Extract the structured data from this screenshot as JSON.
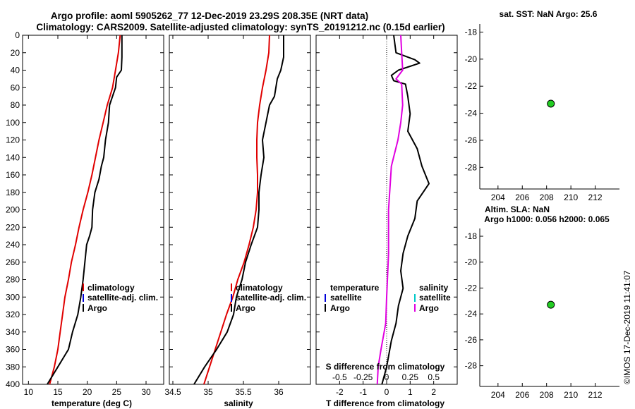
{
  "title_line1": "Argo profile: aoml 5905262_77 12-Dec-2019 23.29S 208.35E (NRT data)",
  "title_line2": "Climatology: CARS2009. Satellite-adjusted climatology: synTS_20191212.nc (0.15d earlier)",
  "stamp": "©IMOS 17-Dec-2019 11:41:07",
  "colors": {
    "climatology": "#e00000",
    "satellite": "#0000d8",
    "argo": "#000000",
    "salinity_diff": "#e000e0",
    "marker": "#22cc22"
  },
  "chart_data": [
    {
      "id": "temperature",
      "type": "line",
      "xlabel": "temperature (deg C)",
      "xlim": [
        9,
        33
      ],
      "xticks": [
        "10",
        "15",
        "20",
        "25",
        "30"
      ],
      "ylim": [
        0,
        400
      ],
      "yticks": [
        "0",
        "20",
        "40",
        "60",
        "80",
        "100",
        "120",
        "140",
        "160",
        "180",
        "200",
        "220",
        "240",
        "260",
        "280",
        "300",
        "320",
        "340",
        "360",
        "380",
        "400"
      ],
      "legend": [
        "climatology",
        "satellite-adj. clim.",
        "Argo"
      ],
      "series": [
        {
          "name": "climatology",
          "color": "red",
          "points": [
            [
              25.6,
              0
            ],
            [
              25.3,
              20
            ],
            [
              24.8,
              40
            ],
            [
              24.3,
              60
            ],
            [
              23.4,
              80
            ],
            [
              22.7,
              100
            ],
            [
              22.0,
              120
            ],
            [
              21.4,
              140
            ],
            [
              20.8,
              160
            ],
            [
              20.1,
              180
            ],
            [
              19.3,
              200
            ],
            [
              18.6,
              220
            ],
            [
              18.0,
              240
            ],
            [
              17.3,
              260
            ],
            [
              16.8,
              280
            ],
            [
              16.2,
              300
            ],
            [
              15.8,
              320
            ],
            [
              15.4,
              340
            ],
            [
              15.0,
              360
            ],
            [
              14.4,
              380
            ],
            [
              13.6,
              400
            ]
          ]
        },
        {
          "name": "Argo",
          "color": "black",
          "points": [
            [
              25.9,
              0
            ],
            [
              25.9,
              25
            ],
            [
              25.8,
              40
            ],
            [
              25.0,
              48
            ],
            [
              24.8,
              60
            ],
            [
              24.3,
              70
            ],
            [
              23.8,
              80
            ],
            [
              23.6,
              100
            ],
            [
              23.1,
              120
            ],
            [
              22.8,
              140
            ],
            [
              22.4,
              150
            ],
            [
              22.0,
              165
            ],
            [
              21.3,
              180
            ],
            [
              20.9,
              200
            ],
            [
              20.8,
              220
            ],
            [
              20.4,
              230
            ],
            [
              19.9,
              240
            ],
            [
              19.6,
              260
            ],
            [
              19.3,
              280
            ],
            [
              18.9,
              300
            ],
            [
              18.4,
              320
            ],
            [
              17.5,
              340
            ],
            [
              16.8,
              360
            ],
            [
              15.0,
              380
            ],
            [
              13.2,
              400
            ]
          ]
        }
      ]
    },
    {
      "id": "salinity",
      "type": "line",
      "xlabel": "salinity",
      "xlim": [
        34.45,
        36.45
      ],
      "xticks": [
        "34.5",
        "35",
        "35.5",
        "36"
      ],
      "ylim": [
        0,
        400
      ],
      "legend": [
        "climatology",
        "satellite-adj. clim.",
        "Argo"
      ],
      "series": [
        {
          "name": "climatology",
          "color": "red",
          "points": [
            [
              35.87,
              0
            ],
            [
              35.86,
              20
            ],
            [
              35.82,
              40
            ],
            [
              35.77,
              60
            ],
            [
              35.73,
              80
            ],
            [
              35.7,
              100
            ],
            [
              35.69,
              120
            ],
            [
              35.69,
              140
            ],
            [
              35.7,
              160
            ],
            [
              35.7,
              180
            ],
            [
              35.68,
              200
            ],
            [
              35.64,
              220
            ],
            [
              35.58,
              240
            ],
            [
              35.51,
              260
            ],
            [
              35.42,
              280
            ],
            [
              35.35,
              300
            ],
            [
              35.26,
              320
            ],
            [
              35.18,
              340
            ],
            [
              35.1,
              360
            ],
            [
              35.02,
              380
            ],
            [
              34.94,
              400
            ]
          ]
        },
        {
          "name": "Argo",
          "color": "black",
          "points": [
            [
              36.07,
              0
            ],
            [
              36.07,
              25
            ],
            [
              36.03,
              40
            ],
            [
              35.98,
              50
            ],
            [
              35.94,
              70
            ],
            [
              35.87,
              80
            ],
            [
              35.82,
              100
            ],
            [
              35.77,
              120
            ],
            [
              35.79,
              140
            ],
            [
              35.75,
              160
            ],
            [
              35.72,
              180
            ],
            [
              35.72,
              200
            ],
            [
              35.7,
              220
            ],
            [
              35.61,
              240
            ],
            [
              35.53,
              260
            ],
            [
              35.48,
              280
            ],
            [
              35.4,
              300
            ],
            [
              35.36,
              320
            ],
            [
              35.27,
              340
            ],
            [
              35.12,
              360
            ],
            [
              34.95,
              380
            ],
            [
              34.8,
              400
            ]
          ]
        }
      ]
    },
    {
      "id": "differences",
      "type": "line",
      "xlabel": "T difference from climatology",
      "xlabel_top": "S difference from climatology",
      "xlim": [
        -3,
        3
      ],
      "xticks": [
        "-2",
        "-1",
        "0",
        "1",
        "2"
      ],
      "xlim_top": [
        -0.75,
        0.75
      ],
      "xticks_top": [
        "-0.5",
        "-0.25",
        "0",
        "0.25",
        "0.5"
      ],
      "ylim": [
        0,
        400
      ],
      "legend_left_title": "temperature",
      "legend_left": [
        "satellite",
        "Argo"
      ],
      "legend_right_title": "salinity",
      "legend_right": [
        "satellite",
        "Argo"
      ],
      "series": [
        {
          "name": "T difference (Argo)",
          "color": "black",
          "points": [
            [
              0.3,
              0
            ],
            [
              0.4,
              20
            ],
            [
              1.2,
              28
            ],
            [
              1.4,
              32
            ],
            [
              0.5,
              40
            ],
            [
              0.2,
              46
            ],
            [
              0.3,
              52
            ],
            [
              0.8,
              56
            ],
            [
              0.9,
              70
            ],
            [
              1.0,
              90
            ],
            [
              0.9,
              110
            ],
            [
              1.3,
              130
            ],
            [
              1.5,
              150
            ],
            [
              1.8,
              170
            ],
            [
              1.3,
              190
            ],
            [
              1.2,
              210
            ],
            [
              0.9,
              230
            ],
            [
              0.7,
              250
            ],
            [
              0.6,
              270
            ],
            [
              0.7,
              290
            ],
            [
              0.5,
              310
            ],
            [
              0.4,
              330
            ],
            [
              0.2,
              350
            ],
            [
              0.0,
              380
            ],
            [
              -0.2,
              400
            ]
          ]
        },
        {
          "name": "S difference (Argo)",
          "color": "magenta",
          "points": [
            [
              0.15,
              0
            ],
            [
              0.16,
              20
            ],
            [
              0.17,
              40
            ],
            [
              0.1,
              50
            ],
            [
              0.16,
              56
            ],
            [
              0.17,
              80
            ],
            [
              0.15,
              100
            ],
            [
              0.12,
              120
            ],
            [
              0.05,
              150
            ],
            [
              0.02,
              200
            ],
            [
              0.02,
              250
            ],
            [
              0.0,
              300
            ],
            [
              -0.01,
              330
            ],
            [
              -0.06,
              360
            ],
            [
              -0.09,
              380
            ],
            [
              -0.1,
              400
            ]
          ]
        }
      ]
    },
    {
      "id": "sst-map",
      "type": "scatter",
      "title": "sat. SST: NaN Argo: 25.6",
      "xlim": [
        202.5,
        214
      ],
      "xticks": [
        "204",
        "206",
        "208",
        "210",
        "212"
      ],
      "ylim": [
        -29.6,
        -17.4
      ],
      "yticks": [
        "-18",
        "-20",
        "-22",
        "-24",
        "-26",
        "-28"
      ],
      "points": [
        [
          208.35,
          -23.29
        ]
      ]
    },
    {
      "id": "sla-map",
      "type": "scatter",
      "title": "Altim. SLA: NaN",
      "subtitle": "Argo h1000: 0.056 h2000: 0.065",
      "xlim": [
        202.5,
        214
      ],
      "xticks": [
        "204",
        "206",
        "208",
        "210",
        "212"
      ],
      "ylim": [
        -29.6,
        -17.4
      ],
      "yticks": [
        "-18",
        "-20",
        "-22",
        "-24",
        "-26",
        "-28"
      ],
      "points": [
        [
          208.35,
          -23.29
        ]
      ]
    }
  ]
}
